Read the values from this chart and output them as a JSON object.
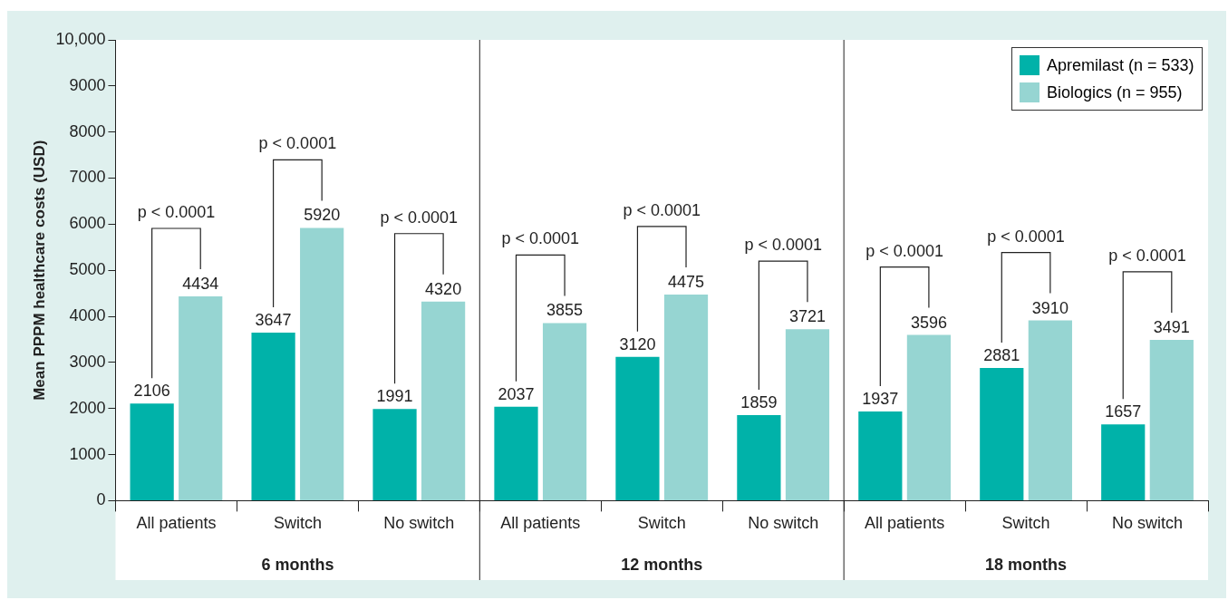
{
  "chart_data": {
    "type": "bar",
    "ylabel": "Mean PPPM healthcare costs (USD)",
    "categories": [
      "All patients",
      "Switch",
      "No switch",
      "All patients",
      "Switch",
      "No switch",
      "All patients",
      "Switch",
      "No switch"
    ],
    "series": [
      {
        "name": "Apremilast (n = 533)",
        "color": "#00b2a9",
        "values": [
          2106,
          3647,
          1991,
          2037,
          3120,
          1859,
          1937,
          2881,
          1657
        ]
      },
      {
        "name": "Biologics (n = 955)",
        "color": "#96d5d2",
        "values": [
          4434,
          5920,
          4320,
          3855,
          4475,
          3721,
          3596,
          3910,
          3491
        ]
      }
    ],
    "ylim": [
      0,
      10000
    ],
    "yticks": [
      0,
      1000,
      2000,
      3000,
      4000,
      5000,
      6000,
      7000,
      8000,
      9000,
      {
        "value": 10000,
        "label": "10,000"
      }
    ],
    "annotations": [
      "p < 0.0001",
      "p < 0.0001",
      "p < 0.0001",
      "p < 0.0001",
      "p < 0.0001",
      "p < 0.0001",
      "p < 0.0001",
      "p < 0.0001",
      "p < 0.0001",
      "6 months",
      "12 months",
      "18 months"
    ],
    "data_labels": true,
    "grid": false,
    "legend": "top right"
  }
}
